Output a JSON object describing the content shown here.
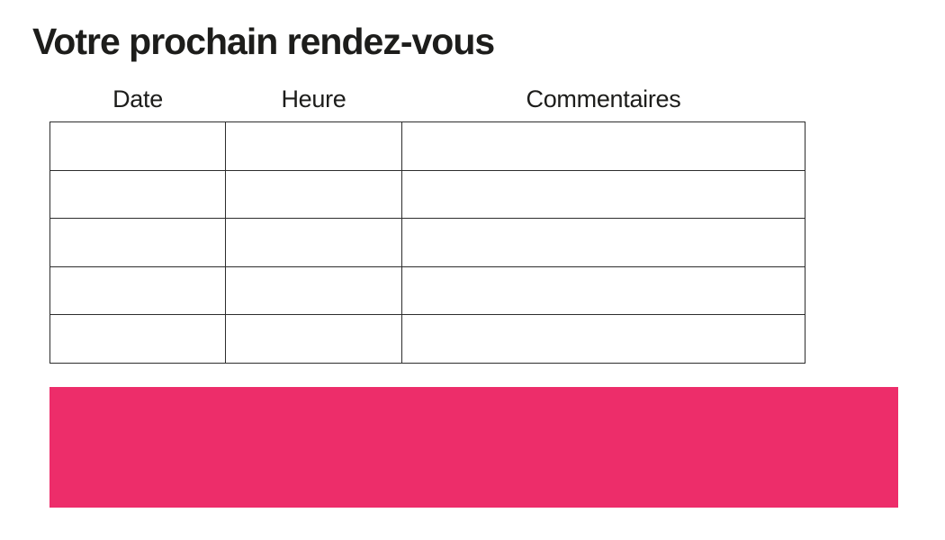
{
  "page": {
    "title": "Votre prochain rendez-vous",
    "background": "#ffffff"
  },
  "appointment_table": {
    "headers": [
      "Date",
      "Heure",
      "Commentaires"
    ],
    "rows": [
      [
        "",
        "",
        ""
      ],
      [
        "",
        "",
        ""
      ],
      [
        "",
        "",
        ""
      ],
      [
        "",
        "",
        ""
      ],
      [
        "",
        "",
        ""
      ]
    ]
  },
  "footer_band": {
    "color": "#ed2d6a"
  },
  "colors": {
    "text": "#1d1d1b",
    "table_border": "#2d2d2d"
  }
}
